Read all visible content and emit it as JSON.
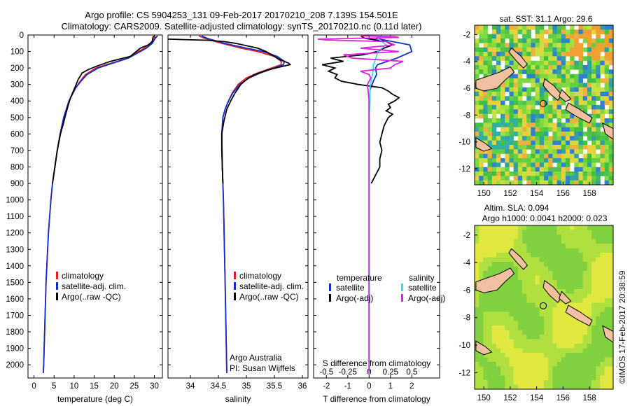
{
  "header": {
    "line1": "Argo profile: CS 5904253_131 09-Feb-2017 20170210_208 7.139S 154.501E",
    "line2": "Climatology: CARS2009. Satellite-adjusted climatology: synTS_20170210.nc (0.11d later)"
  },
  "credit": {
    "org": "Argo Australia",
    "pi": "PI: Susan Wijffels",
    "stamp": "©IMOS 17-Feb-2017 20:38:59"
  },
  "colors": {
    "climatology": "#e02020",
    "satellite": "#1030c8",
    "argo": "#000000",
    "sal_satellite": "#30e0f0",
    "sal_argo": "#e020e0",
    "land": "#f0c0a0"
  },
  "depth_axis": {
    "range": [
      0,
      2080
    ],
    "ticks": [
      "0",
      "100",
      "200",
      "300",
      "400",
      "500",
      "600",
      "700",
      "800",
      "900",
      "1000",
      "1100",
      "1200",
      "1300",
      "1400",
      "1500",
      "1600",
      "1700",
      "1800",
      "1900",
      "2000"
    ]
  },
  "chart_data": [
    {
      "type": "line",
      "id": "temperature",
      "xlabel": "temperature (deg C)",
      "xlim": [
        -1.5,
        32
      ],
      "xticks": [
        "0",
        "5",
        "10",
        "15",
        "20",
        "25",
        "30"
      ],
      "legend": [
        "climatology",
        "satellite-adj. clim.",
        "Argo(..raw -QC)"
      ],
      "series": [
        {
          "name": "climatology",
          "depth": [
            5,
            20,
            50,
            80,
            100,
            140,
            180,
            200,
            240,
            280,
            320,
            400,
            500,
            600,
            700,
            800,
            900,
            1000,
            1200,
            1500,
            2000,
            2050
          ],
          "values": [
            30.2,
            30,
            29,
            27.5,
            26,
            23.5,
            18,
            15.5,
            12.8,
            11.5,
            10.4,
            8.7,
            7.4,
            6.5,
            5.8,
            5.2,
            4.6,
            4.2,
            3.6,
            3.0,
            2.4,
            2.3
          ]
        },
        {
          "name": "satellite-adj. clim.",
          "depth": [
            5,
            20,
            50,
            80,
            100,
            140,
            180,
            200,
            240,
            280,
            320,
            400,
            500,
            600,
            700,
            800,
            900,
            1000,
            1200,
            1500,
            2000,
            2050
          ],
          "values": [
            30.8,
            30.2,
            29.5,
            28,
            26.5,
            23.5,
            18.5,
            16,
            13.2,
            11.7,
            10.4,
            8.7,
            7.4,
            6.5,
            5.8,
            5.2,
            4.6,
            4.2,
            3.6,
            3.0,
            2.4,
            2.3
          ]
        },
        {
          "name": "Argo(..raw -QC)",
          "depth": [
            5,
            20,
            40,
            60,
            80,
            100,
            130,
            160,
            190,
            210,
            230,
            250,
            270,
            300,
            340,
            380,
            420,
            480,
            540,
            600,
            700,
            800,
            900
          ],
          "values": [
            29.8,
            29.6,
            29.5,
            28.5,
            26.5,
            25.5,
            24,
            19,
            15.5,
            13.5,
            12,
            11.5,
            11,
            10.5,
            9.8,
            9.1,
            8.6,
            7.9,
            7.3,
            6.6,
            5.8,
            5.2,
            4.6
          ]
        }
      ]
    },
    {
      "type": "line",
      "id": "salinity",
      "xlabel": "salinity",
      "xlim": [
        33.6,
        36.1
      ],
      "xticks": [
        "34",
        "34.5",
        "35",
        "35.5",
        "36"
      ],
      "legend": [
        "climatology",
        "satellite-adj. clim.",
        "Argo(..raw -QC)"
      ],
      "series": [
        {
          "name": "climatology",
          "depth": [
            5,
            20,
            50,
            80,
            100,
            130,
            160,
            180,
            200,
            230,
            260,
            300,
            350,
            400,
            450,
            500,
            600,
            800,
            1000,
            1500,
            2050
          ],
          "values": [
            34.15,
            34.25,
            34.55,
            34.9,
            35.2,
            35.5,
            35.62,
            35.62,
            35.45,
            35.2,
            35.0,
            34.85,
            34.75,
            34.68,
            34.62,
            34.58,
            34.56,
            34.57,
            34.59,
            34.62,
            34.65
          ]
        },
        {
          "name": "satellite-adj. clim.",
          "depth": [
            5,
            20,
            50,
            80,
            100,
            130,
            160,
            180,
            200,
            230,
            260,
            300,
            350,
            400,
            450,
            500,
            600,
            800,
            1000,
            1500,
            2050
          ],
          "values": [
            34.2,
            34.3,
            34.6,
            35.0,
            35.3,
            35.55,
            35.68,
            35.66,
            35.5,
            35.25,
            35.05,
            34.88,
            34.76,
            34.68,
            34.62,
            34.58,
            34.56,
            34.57,
            34.59,
            34.62,
            34.65
          ]
        },
        {
          "name": "Argo(..raw -QC)",
          "depth": [
            25,
            28,
            32,
            40,
            50,
            65,
            80,
            100,
            130,
            150,
            170,
            180,
            190,
            210,
            240,
            270,
            300,
            350,
            400,
            450,
            520,
            600,
            700,
            800,
            900
          ],
          "values": [
            33.6,
            33.9,
            34.3,
            34.6,
            34.8,
            35.0,
            35.2,
            35.35,
            35.5,
            35.6,
            35.75,
            35.78,
            35.65,
            35.4,
            35.15,
            35.0,
            34.9,
            34.8,
            34.72,
            34.65,
            34.6,
            34.56,
            34.56,
            34.57,
            34.58
          ]
        }
      ]
    },
    {
      "type": "line",
      "id": "difference",
      "xlabel": "T difference from climatology",
      "x2label": "S difference from climatology",
      "xlim": [
        -2.6,
        3.3
      ],
      "xticks": [
        "-2",
        "-1",
        "0",
        "1",
        "2"
      ],
      "x2ticks": [
        "-0.5",
        "-0.25",
        "0",
        "0.25",
        "0.5"
      ],
      "legend_temperature": [
        "temperature",
        "satellite",
        "Argo(-adj)"
      ],
      "legend_salinity": [
        "salinity",
        "satellite",
        "Argo(-adj)"
      ],
      "series": [
        {
          "name": "temperature satellite",
          "depth": [
            5,
            20,
            60,
            100,
            140,
            180,
            200,
            240,
            280,
            330,
            400,
            500,
            700,
            1000,
            1500,
            2050
          ],
          "values": [
            0.6,
            0.3,
            1.9,
            2.0,
            1.3,
            0.4,
            0.3,
            0.35,
            0.2,
            0.05,
            0.0,
            0.0,
            0.0,
            0.0,
            0.0,
            0.0
          ]
        },
        {
          "name": "temperature Argo(-adj)",
          "depth": [
            5,
            20,
            40,
            60,
            80,
            100,
            120,
            140,
            160,
            180,
            200,
            220,
            240,
            260,
            280,
            300,
            320,
            340,
            360,
            380,
            400,
            420,
            440,
            460,
            480,
            500,
            550,
            600,
            650,
            700,
            750,
            800,
            850,
            900
          ],
          "values": [
            -0.4,
            -0.2,
            0.8,
            1.1,
            0.7,
            0.4,
            -0.3,
            -1.8,
            -1.2,
            -2.2,
            -1.6,
            -1.9,
            -1.5,
            -1.6,
            -1.3,
            -0.5,
            0.6,
            0.9,
            1.1,
            1.4,
            1.2,
            0.9,
            1.0,
            0.8,
            1.1,
            0.9,
            0.7,
            0.6,
            0.5,
            0.6,
            0.5,
            0.5,
            0.3,
            0.1
          ]
        },
        {
          "name": "salinity satellite",
          "depth": [
            5,
            20,
            60,
            100,
            140,
            180,
            200,
            240,
            280,
            330,
            400,
            500,
            700,
            1000,
            1500,
            2050
          ],
          "values": [
            0.12,
            0.1,
            0.2,
            0.1,
            0.08,
            0.05,
            0.05,
            0.04,
            0.02,
            0.01,
            0.01,
            0.0,
            0.0,
            0.0,
            0.0,
            0.0
          ]
        },
        {
          "name": "salinity Argo(-adj)",
          "depth": [
            5,
            10,
            15,
            25,
            30,
            40,
            60,
            80,
            100,
            120,
            140,
            160,
            180,
            200,
            220,
            240,
            260,
            300,
            400,
            500,
            700,
            1000,
            1500,
            2050
          ],
          "values": [
            -0.1,
            0.3,
            0.35,
            -0.6,
            -0.5,
            0.2,
            0.3,
            -0.1,
            0.35,
            -0.3,
            -0.2,
            0.4,
            0.3,
            0.25,
            -0.1,
            0.0,
            0.02,
            -0.02,
            0.0,
            0.0,
            0.0,
            0.0,
            0.0,
            0.0
          ]
        }
      ]
    }
  ],
  "maps": {
    "sst": {
      "title": "sat. SST: 31.1  Argo: 29.6",
      "xticks": [
        "150",
        "152",
        "154",
        "156",
        "158"
      ],
      "yticks": [
        "-2",
        "-4",
        "-6",
        "-8",
        "-10",
        "-12"
      ]
    },
    "sla": {
      "title1": "Altim. SLA: 0.094",
      "title2": "Argo h1000: 0.0041 h2000: 0.023",
      "xticks": [
        "150",
        "152",
        "154",
        "156",
        "158"
      ],
      "yticks": [
        "-2",
        "-4",
        "-6",
        "-8",
        "-10",
        "-12"
      ]
    },
    "lon_range": [
      149.3,
      159.8
    ],
    "lat_range": [
      -13.2,
      -1.3
    ],
    "argo_position": {
      "lon": 154.501,
      "lat": -7.139
    }
  }
}
